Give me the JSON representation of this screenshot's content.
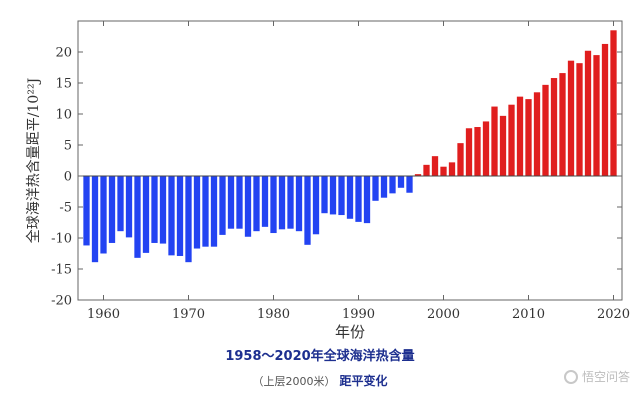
{
  "chart_data": {
    "type": "bar",
    "xlabel": "年份",
    "ylabel": "全球海洋热含量距平/10²²J",
    "xlim": [
      1957,
      2021
    ],
    "ylim": [
      -20,
      25
    ],
    "x_ticks": [
      1960,
      1970,
      1980,
      1990,
      2000,
      2010,
      2020
    ],
    "y_ticks": [
      -20,
      -15,
      -10,
      -5,
      0,
      5,
      10,
      15,
      20
    ],
    "grid": false,
    "x": [
      1958,
      1959,
      1960,
      1961,
      1962,
      1963,
      1964,
      1965,
      1966,
      1967,
      1968,
      1969,
      1970,
      1971,
      1972,
      1973,
      1974,
      1975,
      1976,
      1977,
      1978,
      1979,
      1980,
      1981,
      1982,
      1983,
      1984,
      1985,
      1986,
      1987,
      1988,
      1989,
      1990,
      1991,
      1992,
      1993,
      1994,
      1995,
      1996,
      1997,
      1998,
      1999,
      2000,
      2001,
      2002,
      2003,
      2004,
      2005,
      2006,
      2007,
      2008,
      2009,
      2010,
      2011,
      2012,
      2013,
      2014,
      2015,
      2016,
      2017,
      2018,
      2019,
      2020
    ],
    "values": [
      -11.2,
      -13.9,
      -12.5,
      -10.8,
      -8.9,
      -9.9,
      -13.2,
      -12.4,
      -10.8,
      -10.9,
      -12.8,
      -12.9,
      -13.9,
      -11.7,
      -11.4,
      -11.4,
      -9.5,
      -8.5,
      -8.5,
      -9.8,
      -8.9,
      -8.2,
      -9.2,
      -8.6,
      -8.5,
      -8.9,
      -11.1,
      -9.4,
      -6.0,
      -6.2,
      -6.3,
      -6.9,
      -7.4,
      -7.6,
      -4.0,
      -3.5,
      -2.8,
      -1.9,
      -2.7,
      0.3,
      1.8,
      3.2,
      1.5,
      2.2,
      5.3,
      7.7,
      7.9,
      8.8,
      11.2,
      9.7,
      11.5,
      12.8,
      12.4,
      13.5,
      14.7,
      15.8,
      16.6,
      18.6,
      18.2,
      20.2,
      19.5,
      21.3,
      23.5
    ],
    "colors": {
      "negative": "#2343f2",
      "positive": "#e01e1e",
      "axis": "#666666"
    }
  },
  "caption": {
    "title": "1958～2020年全球海洋热含量",
    "sub_paren": "（上层2000米）",
    "sub_bold": "距平变化"
  },
  "watermark": {
    "text": "悟空问答",
    "icon": "chat-bubble-icon"
  }
}
